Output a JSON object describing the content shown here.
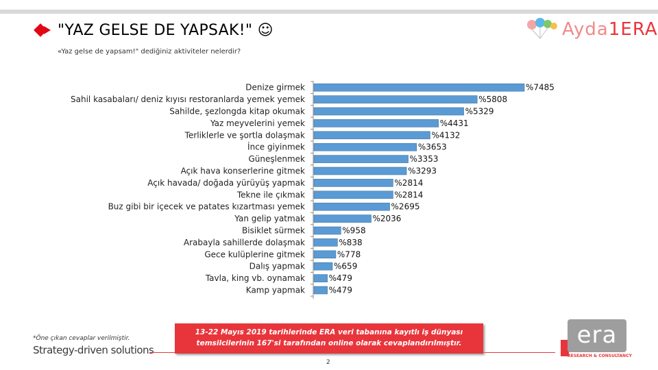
{
  "header": {
    "title": "\"YAZ GELSE DE YAPSAK!\" ☺",
    "subtitle": "«Yaz gelse de yapsam!\" dediğiniz aktiviteler nelerdir?"
  },
  "brand": {
    "logo_text_part1": "Ayda",
    "logo_text_part2": "1ERA",
    "tagline": "Strategy-driven solutions",
    "era_logo": "era",
    "era_tag": "RESEARCH & CONSULTANCY"
  },
  "colors": {
    "accent_red": "#e30613",
    "bar_fill": "#5b9bd5",
    "bar_stroke": "#41719c",
    "source_box": "#e8353b"
  },
  "footer": {
    "footnote": "*Öne çıkan cevaplar verilmiştir.",
    "source": "13-22 Mayıs 2019 tarihlerinde ERA veri tabanına kayıtlı iş dünyası temsilcilerinin 167'si tarafından online olarak cevaplandırılmıştır.",
    "page_number": "2"
  },
  "chart_data": {
    "type": "bar",
    "orientation": "horizontal",
    "categories": [
      "Denize girmek",
      "Sahil kasabaları/ deniz kıyısı restoranlarda yemek yemek",
      "Sahilde, şezlongda kitap okumak",
      "Yaz meyvelerini yemek",
      "Terliklerle ve şortla dolaşmak",
      "İnce giyinmek",
      "Güneşlenmek",
      "Açık hava konserlerine gitmek",
      "Açık havada/ doğada yürüyüş yapmak",
      "Tekne ile çıkmak",
      "Buz gibi bir içecek ve patates kızartması yemek",
      "Yan gelip yatmak",
      "Bisiklet sürmek",
      "Arabayla sahillerde dolaşmak",
      "Gece kulüplerine gitmek",
      "Dalış yapmak",
      "Tavla, king vb. oynamak",
      "Kamp yapmak"
    ],
    "values": [
      74.85,
      58.08,
      53.29,
      44.31,
      41.32,
      36.53,
      33.53,
      32.93,
      28.14,
      28.14,
      26.95,
      20.36,
      9.58,
      8.38,
      7.78,
      6.59,
      4.79,
      4.79
    ],
    "data_labels": [
      "%7485",
      "%5808",
      "%5329",
      "%4431",
      "%4132",
      "%3653",
      "%3353",
      "%3293",
      "%2814",
      "%2814",
      "%2695",
      "%2036",
      "%958",
      "%838",
      "%778",
      "%659",
      "%479",
      "%479"
    ],
    "xlim": [
      0,
      100
    ],
    "grid": false,
    "legend": "none"
  }
}
